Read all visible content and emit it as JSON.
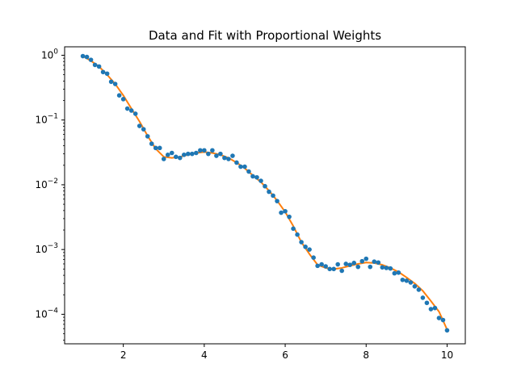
{
  "chart_data": {
    "type": "scatter",
    "title": "Data and Fit with Proportional Weights",
    "xlabel": "",
    "ylabel": "",
    "xlim": [
      0.55,
      10.45
    ],
    "ylim": [
      3.5e-05,
      1.35
    ],
    "yscale": "log",
    "grid": false,
    "legend": "none",
    "x_ticks": [
      2,
      4,
      6,
      8,
      10
    ],
    "x_tick_labels": [
      "2",
      "4",
      "6",
      "8",
      "10"
    ],
    "y_ticks": [
      1,
      0.1,
      0.01,
      0.001,
      0.0001
    ],
    "y_tick_labels": [
      {
        "base": "10",
        "exp": "0"
      },
      {
        "base": "10",
        "exp": "−1"
      },
      {
        "base": "10",
        "exp": "−2"
      },
      {
        "base": "10",
        "exp": "−3"
      },
      {
        "base": "10",
        "exp": "−4"
      }
    ],
    "series": [
      {
        "kind": "points",
        "color": "#1f77b4",
        "x": [
          1.0,
          1.1,
          1.2,
          1.3,
          1.4,
          1.5,
          1.6,
          1.7,
          1.8,
          1.9,
          2.0,
          2.1,
          2.2,
          2.3,
          2.4,
          2.5,
          2.6,
          2.7,
          2.8,
          2.9,
          3.0,
          3.1,
          3.2,
          3.3,
          3.4,
          3.5,
          3.6,
          3.7,
          3.8,
          3.9,
          4.0,
          4.1,
          4.2,
          4.3,
          4.4,
          4.5,
          4.6,
          4.7,
          4.8,
          4.9,
          5.0,
          5.1,
          5.2,
          5.3,
          5.4,
          5.5,
          5.6,
          5.7,
          5.8,
          5.9,
          6.0,
          6.1,
          6.2,
          6.3,
          6.4,
          6.5,
          6.6,
          6.7,
          6.8,
          6.9,
          7.0,
          7.1,
          7.2,
          7.3,
          7.4,
          7.5,
          7.6,
          7.7,
          7.8,
          7.9,
          8.0,
          8.1,
          8.2,
          8.3,
          8.4,
          8.5,
          8.6,
          8.7,
          8.8,
          8.9,
          9.0,
          9.1,
          9.2,
          9.3,
          9.4,
          9.5,
          9.6,
          9.7,
          9.8,
          9.9,
          10.0
        ],
        "y": [
          0.97,
          0.94,
          0.85,
          0.71,
          0.67,
          0.55,
          0.52,
          0.39,
          0.36,
          0.24,
          0.21,
          0.15,
          0.14,
          0.125,
          0.081,
          0.072,
          0.056,
          0.043,
          0.037,
          0.037,
          0.025,
          0.029,
          0.031,
          0.027,
          0.026,
          0.029,
          0.03,
          0.03,
          0.031,
          0.034,
          0.034,
          0.03,
          0.034,
          0.028,
          0.03,
          0.026,
          0.025,
          0.028,
          0.022,
          0.019,
          0.019,
          0.016,
          0.0135,
          0.013,
          0.0115,
          0.0095,
          0.0078,
          0.0068,
          0.0056,
          0.0037,
          0.0039,
          0.0032,
          0.0021,
          0.0017,
          0.0013,
          0.0011,
          0.001,
          0.00075,
          0.00056,
          0.00059,
          0.00055,
          0.0005,
          0.0005,
          0.00059,
          0.00047,
          0.0006,
          0.00058,
          0.00062,
          0.00054,
          0.00066,
          0.00072,
          0.00054,
          0.00065,
          0.00063,
          0.00053,
          0.00052,
          0.00051,
          0.00043,
          0.00044,
          0.00034,
          0.00033,
          0.00031,
          0.00027,
          0.00024,
          0.00018,
          0.00015,
          0.00012,
          0.000125,
          8.75e-05,
          8.15e-05,
          5.65e-05
        ]
      },
      {
        "kind": "line",
        "color": "#ff7f0e",
        "x": [
          1.0,
          1.2,
          1.4,
          1.6,
          1.8,
          2.0,
          2.2,
          2.4,
          2.6,
          2.8,
          3.0,
          3.2,
          3.4,
          3.6,
          3.8,
          4.0,
          4.2,
          4.4,
          4.6,
          4.8,
          5.0,
          5.2,
          5.4,
          5.6,
          5.8,
          6.0,
          6.2,
          6.4,
          6.6,
          6.8,
          7.0,
          7.2,
          7.4,
          7.6,
          7.8,
          8.0,
          8.2,
          8.4,
          8.6,
          8.8,
          9.0,
          9.2,
          9.4,
          9.6,
          9.8,
          10.0
        ],
        "y": [
          0.97,
          0.82,
          0.67,
          0.5,
          0.36,
          0.24,
          0.15,
          0.095,
          0.057,
          0.036,
          0.027,
          0.026,
          0.027,
          0.029,
          0.031,
          0.032,
          0.031,
          0.029,
          0.026,
          0.022,
          0.018,
          0.014,
          0.011,
          0.0081,
          0.0057,
          0.0038,
          0.0023,
          0.0013,
          0.00085,
          0.00058,
          0.00052,
          0.0005,
          0.00052,
          0.00056,
          0.0006,
          0.00063,
          0.00062,
          0.00058,
          0.00052,
          0.00045,
          0.00037,
          0.0003,
          0.00023,
          0.00016,
          0.00011,
          5.8e-05
        ]
      }
    ]
  }
}
